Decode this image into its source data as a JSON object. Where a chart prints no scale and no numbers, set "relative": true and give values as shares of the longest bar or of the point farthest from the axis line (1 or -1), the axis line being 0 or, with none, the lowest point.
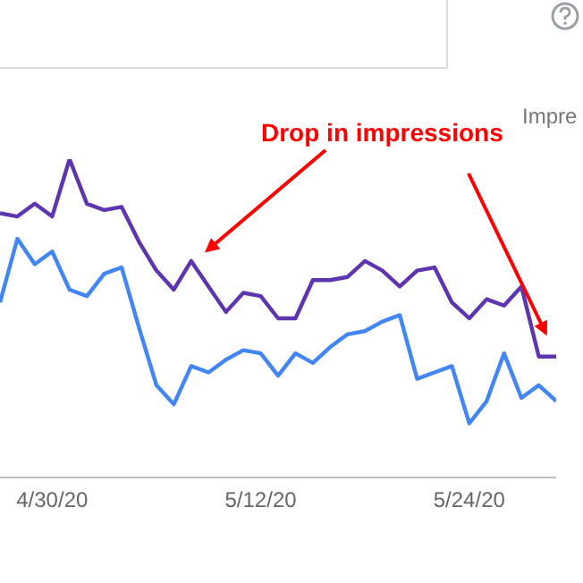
{
  "chart_data": {
    "type": "line",
    "relative": true,
    "categories": [
      null,
      null,
      null,
      "4/30/20",
      null,
      null,
      null,
      null,
      null,
      null,
      null,
      null,
      null,
      null,
      null,
      "5/12/20",
      null,
      null,
      null,
      null,
      null,
      null,
      null,
      null,
      null,
      null,
      null,
      "5/24/20",
      null,
      null,
      null,
      null,
      null
    ],
    "series": [
      {
        "color": "#5e35b1",
        "values": [
          0.83,
          0.82,
          0.86,
          0.82,
          1,
          0.86,
          0.84,
          0.85,
          0.74,
          0.65,
          0.59,
          0.68,
          0.6,
          0.52,
          0.58,
          0.57,
          0.5,
          0.5,
          0.62,
          0.62,
          0.63,
          0.68,
          0.65,
          0.6,
          0.65,
          0.66,
          0.55,
          0.5,
          0.56,
          0.54,
          0.6,
          0.38,
          0.38
        ]
      },
      {
        "color": "#4285f4",
        "values": [
          0.55,
          0.75,
          0.67,
          0.71,
          0.59,
          0.57,
          0.64,
          0.66,
          0.47,
          0.29,
          0.23,
          0.35,
          0.33,
          0.37,
          0.4,
          0.39,
          0.32,
          0.39,
          0.36,
          0.41,
          0.45,
          0.46,
          0.49,
          0.51,
          0.31,
          0.33,
          0.35,
          0.17,
          0.24,
          0.39,
          0.25,
          0.29,
          0.24
        ]
      }
    ],
    "annotations": [
      "Drop in impressions",
      "Impre"
    ]
  }
}
